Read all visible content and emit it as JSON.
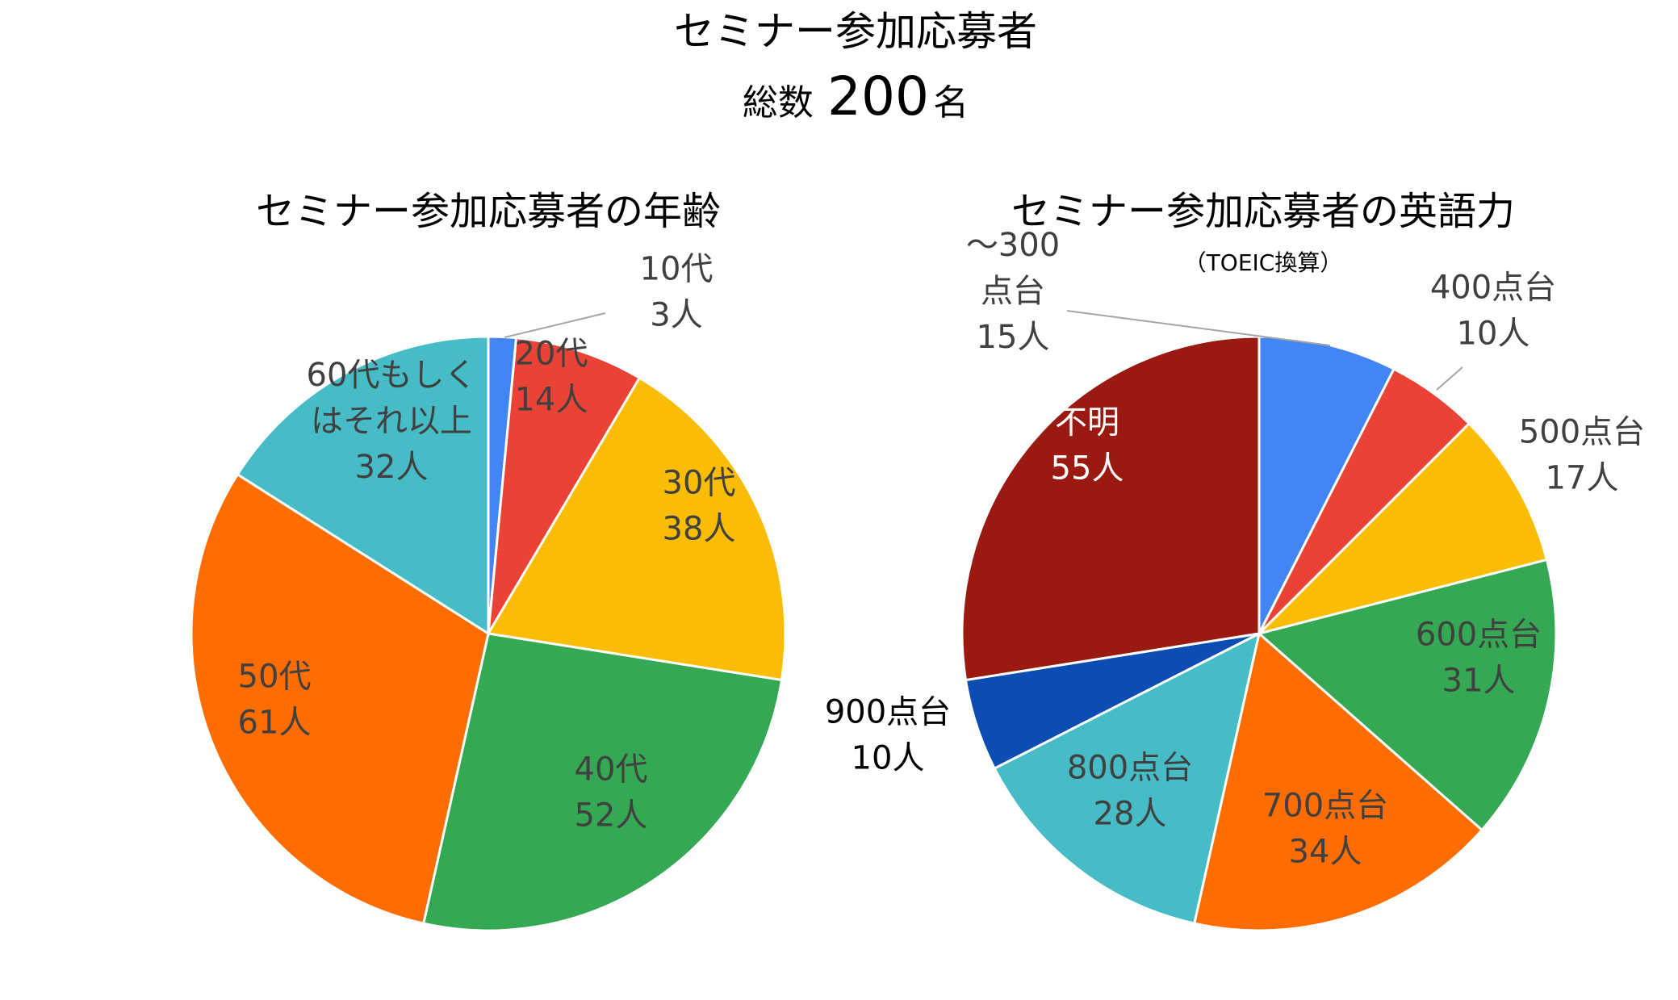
{
  "header": {
    "title": "セミナー参加応募者",
    "total_prefix": "総数",
    "total_value": "200",
    "total_suffix": "名",
    "color": "#e8150f"
  },
  "chart_data": [
    {
      "type": "pie",
      "title": "セミナー参加応募者の年齢",
      "subtitle": "",
      "unit": "人",
      "slices": [
        {
          "name": "10代",
          "value": 3,
          "color": "#4285f4",
          "label_lines": [
            "10代",
            "3人"
          ],
          "label_color": "#404040",
          "leader": true
        },
        {
          "name": "20代",
          "value": 14,
          "color": "#ea4335",
          "label_lines": [
            "20代",
            "14人"
          ],
          "label_color": "#404040"
        },
        {
          "name": "30代",
          "value": 38,
          "color": "#fbbc04",
          "label_lines": [
            "30代",
            "38人"
          ],
          "label_color": "#404040"
        },
        {
          "name": "40代",
          "value": 52,
          "color": "#34a853",
          "label_lines": [
            "40代",
            "52人"
          ],
          "label_color": "#404040"
        },
        {
          "name": "50代",
          "value": 61,
          "color": "#ff6d01",
          "label_lines": [
            "50代",
            "61人"
          ],
          "label_color": "#404040"
        },
        {
          "name": "60代もしくはそれ以上",
          "value": 32,
          "color": "#46bdc6",
          "label_lines": [
            "60代もしく",
            "はそれ以上",
            "32人"
          ],
          "label_color": "#404040"
        }
      ]
    },
    {
      "type": "pie",
      "title": "セミナー参加応募者の英語力",
      "subtitle": "（TOEIC換算）",
      "unit": "人",
      "slices": [
        {
          "name": "〜300点台",
          "value": 15,
          "color": "#4285f4",
          "label_lines": [
            "〜300",
            "点台",
            "15人"
          ],
          "label_color": "#404040",
          "leader": true
        },
        {
          "name": "400点台",
          "value": 10,
          "color": "#ea4335",
          "label_lines": [
            "400点台",
            "10人"
          ],
          "label_color": "#404040",
          "leader": true
        },
        {
          "name": "500点台",
          "value": 17,
          "color": "#fbbc04",
          "label_lines": [
            "500点台",
            "17人"
          ],
          "label_color": "#404040"
        },
        {
          "name": "600点台",
          "value": 31,
          "color": "#34a853",
          "label_lines": [
            "600点台",
            "31人"
          ],
          "label_color": "#404040"
        },
        {
          "name": "700点台",
          "value": 34,
          "color": "#ff6d01",
          "label_lines": [
            "700点台",
            "34人"
          ],
          "label_color": "#404040"
        },
        {
          "name": "800点台",
          "value": 28,
          "color": "#46bdc6",
          "label_lines": [
            "800点台",
            "28人"
          ],
          "label_color": "#404040"
        },
        {
          "name": "900点台",
          "value": 10,
          "color": "#0b4db3",
          "label_lines": [
            "900点台",
            "10人"
          ],
          "label_color": "#000000"
        },
        {
          "name": "不明",
          "value": 55,
          "color": "#9a1a12",
          "label_lines": [
            "不明",
            "55人"
          ],
          "label_color": "#ffffff"
        }
      ]
    }
  ]
}
